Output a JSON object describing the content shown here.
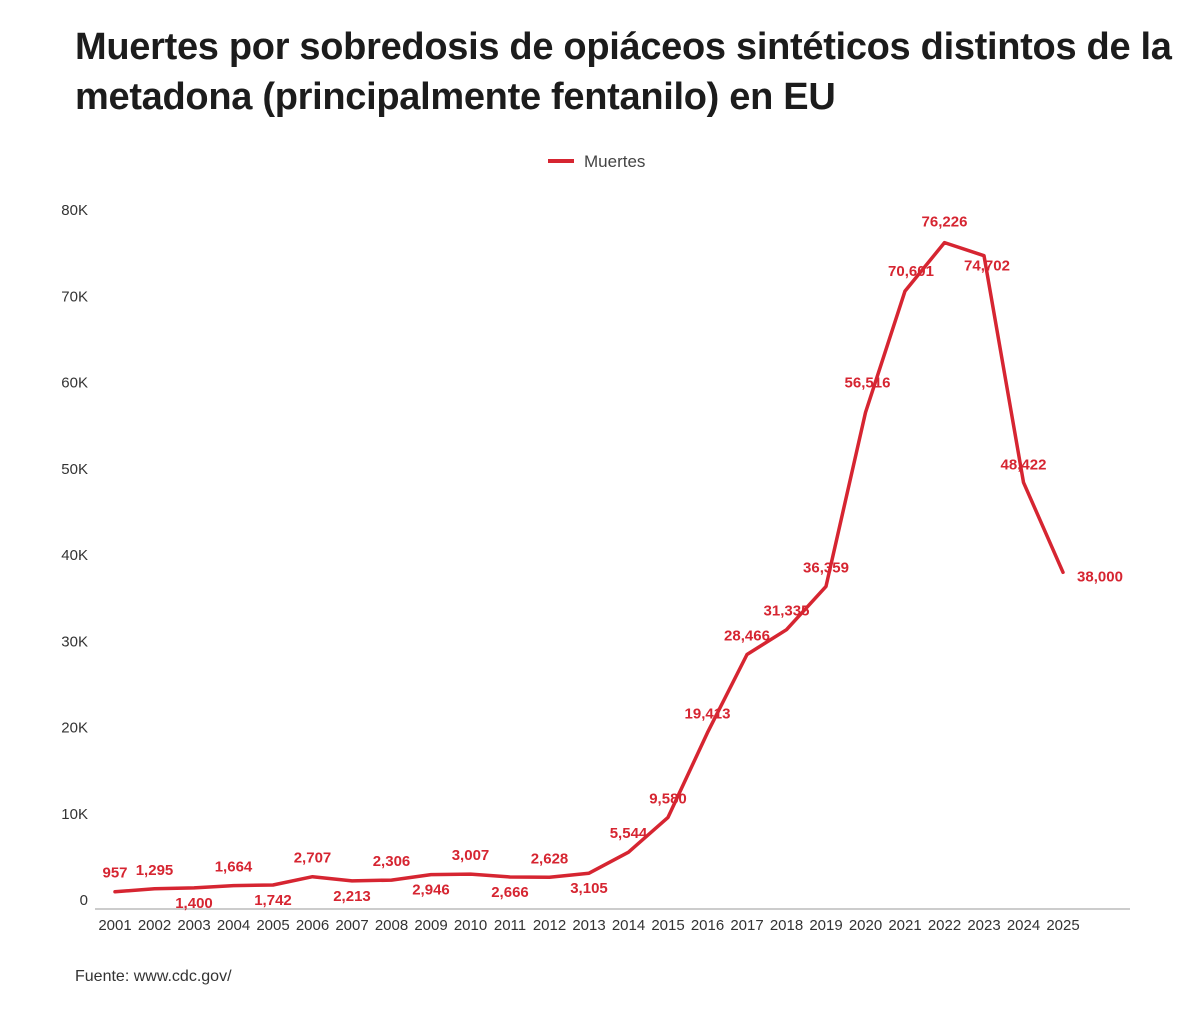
{
  "title": "Muertes por sobredosis de opiáceos sintéticos distintos de la metadona (principalmente fentanilo) en EU",
  "source": "Fuente: www.cdc.gov/",
  "colors": {
    "line": "#d62531",
    "axis": "#999999",
    "text": "#333333",
    "title": "#1c1c1c"
  },
  "chart_data": {
    "type": "line",
    "categories": [
      "2001",
      "2002",
      "2003",
      "2004",
      "2005",
      "2006",
      "2007",
      "2008",
      "2009",
      "2010",
      "2011",
      "2012",
      "2013",
      "2014",
      "2015",
      "2016",
      "2017",
      "2018",
      "2019",
      "2020",
      "2021",
      "2022",
      "2023",
      "2024",
      "2025"
    ],
    "series": [
      {
        "name": "Muertes",
        "values": [
          957,
          1295,
          1400,
          1664,
          1742,
          2707,
          2213,
          2306,
          2946,
          3007,
          2666,
          2628,
          3105,
          5544,
          9580,
          19413,
          28466,
          31335,
          36359,
          56516,
          70601,
          76226,
          74702,
          48422,
          38000
        ],
        "labels": [
          "957",
          "1,295",
          "1,400",
          "1,664",
          "1,742",
          "2,707",
          "2,213",
          "2,306",
          "2,946",
          "3,007",
          "2,666",
          "2,628",
          "3,105",
          "5,544",
          "9,580",
          "19,413",
          "28,466",
          "31,335",
          "36,359",
          "56,516",
          "70,601",
          "76,226",
          "74,702",
          "48,422",
          "38,000"
        ]
      }
    ],
    "ylim": [
      0,
      80000
    ],
    "yticks": [
      0,
      10000,
      20000,
      30000,
      40000,
      50000,
      60000,
      70000,
      80000
    ],
    "ytick_labels": [
      "0",
      "10K",
      "20K",
      "30K",
      "40K",
      "50K",
      "60K",
      "70K",
      "80K"
    ],
    "legend_position": "top-center",
    "grid": false
  }
}
